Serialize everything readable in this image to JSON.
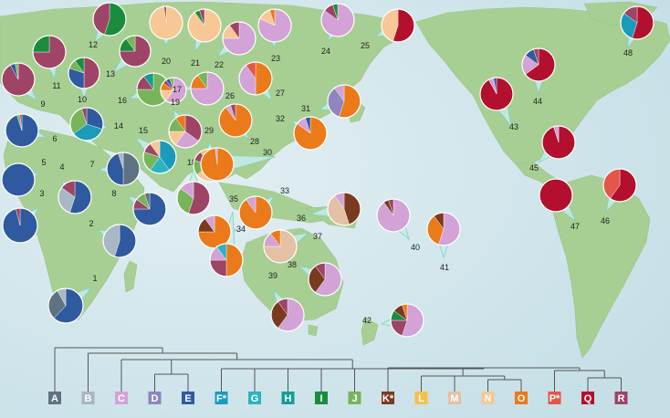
{
  "colors": {
    "A": "#5f7282",
    "B": "#a9b6c6",
    "C": "#d3a2d6",
    "D": "#8e86bd",
    "E": "#2f5aa0",
    "F": "#1b9aba",
    "G": "#2cb3bf",
    "H": "#159e8f",
    "I": "#1a8c3e",
    "J": "#78b45a",
    "K": "#7a3a20",
    "L": "#f6c04a",
    "M": "#e4c0a4",
    "N": "#f7c796",
    "O": "#ea7a1a",
    "P": "#e2574a",
    "Q": "#b2102e",
    "R": "#9e4466"
  },
  "haplogroups": [
    {
      "key": "A",
      "label": "A"
    },
    {
      "key": "B",
      "label": "B"
    },
    {
      "key": "C",
      "label": "C"
    },
    {
      "key": "D",
      "label": "D"
    },
    {
      "key": "E",
      "label": "E"
    },
    {
      "key": "F",
      "label": "F*"
    },
    {
      "key": "G",
      "label": "G"
    },
    {
      "key": "H",
      "label": "H"
    },
    {
      "key": "I",
      "label": "I"
    },
    {
      "key": "J",
      "label": "J"
    },
    {
      "key": "K",
      "label": "K*"
    },
    {
      "key": "L",
      "label": "L"
    },
    {
      "key": "M",
      "label": "M"
    },
    {
      "key": "N",
      "label": "N"
    },
    {
      "key": "O",
      "label": "O"
    },
    {
      "key": "P",
      "label": "P*"
    },
    {
      "key": "Q",
      "label": "Q"
    },
    {
      "key": "R",
      "label": "R"
    }
  ],
  "populations": [
    {
      "id": "1",
      "comp": {
        "E": 0.62,
        "A": 0.3,
        "B": 0.08
      }
    },
    {
      "id": "2",
      "comp": {
        "E": 0.55,
        "B": 0.45
      }
    },
    {
      "id": "3",
      "comp": {
        "E": 0.96,
        "R": 0.04
      }
    },
    {
      "id": "4",
      "comp": {
        "E": 0.55,
        "B": 0.3,
        "R": 0.15
      }
    },
    {
      "id": "5",
      "comp": {
        "E": 1.0
      }
    },
    {
      "id": "6",
      "comp": {
        "E": 0.95,
        "J": 0.03,
        "R": 0.02
      }
    },
    {
      "id": "7",
      "comp": {
        "A": 0.5,
        "E": 0.45,
        "B": 0.05
      }
    },
    {
      "id": "8",
      "comp": {
        "E": 0.75,
        "R": 0.1,
        "J": 0.1,
        "A": 0.05
      }
    },
    {
      "id": "9",
      "comp": {
        "R": 0.92,
        "E": 0.05,
        "J": 0.03
      }
    },
    {
      "id": "10",
      "comp": {
        "R": 0.5,
        "E": 0.3,
        "J": 0.1,
        "I": 0.1
      }
    },
    {
      "id": "11",
      "comp": {
        "R": 0.75,
        "I": 0.25
      }
    },
    {
      "id": "12",
      "comp": {
        "I": 0.55,
        "R": 0.45
      }
    },
    {
      "id": "13",
      "comp": {
        "R": 0.75,
        "I": 0.15,
        "J": 0.1
      }
    },
    {
      "id": "14",
      "comp": {
        "E": 0.3,
        "F": 0.35,
        "J": 0.3,
        "R": 0.05
      }
    },
    {
      "id": "15",
      "comp": {
        "F": 0.4,
        "G": 0.2,
        "J": 0.2,
        "R": 0.1,
        "N": 0.1
      }
    },
    {
      "id": "16",
      "comp": {
        "J": 0.75,
        "R": 0.15,
        "H": 0.1
      }
    },
    {
      "id": "17",
      "comp": {
        "C": 0.6,
        "N": 0.15,
        "O": 0.1,
        "R": 0.05,
        "E": 0.05,
        "J": 0.05
      }
    },
    {
      "id": "18",
      "comp": {
        "R": 0.55,
        "J": 0.3,
        "C": 0.15
      }
    },
    {
      "id": "19",
      "comp": {
        "R": 0.35,
        "C": 0.25,
        "N": 0.15,
        "J": 0.15,
        "O": 0.1
      }
    },
    {
      "id": "20",
      "comp": {
        "N": 0.98,
        "K": 0.02
      }
    },
    {
      "id": "21",
      "comp": {
        "N": 0.9,
        "I": 0.05,
        "R": 0.05
      }
    },
    {
      "id": "22",
      "comp": {
        "C": 0.75,
        "N": 0.15,
        "R": 0.1
      }
    },
    {
      "id": "23",
      "comp": {
        "C": 0.82,
        "N": 0.13,
        "O": 0.05
      }
    },
    {
      "id": "24",
      "comp": {
        "C": 0.85,
        "R": 0.1,
        "I": 0.05
      }
    },
    {
      "id": "25",
      "comp": {
        "Q": 0.55,
        "N": 0.45
      }
    },
    {
      "id": "26",
      "comp": {
        "C": 0.75,
        "O": 0.15,
        "J": 0.1
      }
    },
    {
      "id": "27",
      "comp": {
        "O": 0.5,
        "C": 0.4,
        "P": 0.1
      }
    },
    {
      "id": "28",
      "comp": {
        "O": 0.9,
        "C": 0.05,
        "R": 0.05
      }
    },
    {
      "id": "29",
      "comp": {
        "O": 0.35,
        "C": 0.15,
        "N": 0.15,
        "J": 0.15,
        "R": 0.1,
        "L": 0.1
      }
    },
    {
      "id": "30",
      "comp": {
        "O": 0.98,
        "C": 0.02
      }
    },
    {
      "id": "31",
      "comp": {
        "O": 0.55,
        "D": 0.35,
        "C": 0.1
      }
    },
    {
      "id": "32",
      "comp": {
        "O": 0.85,
        "C": 0.1,
        "E": 0.05
      }
    },
    {
      "id": "33",
      "comp": {
        "O": 0.9,
        "C": 0.1
      }
    },
    {
      "id": "34",
      "comp": {
        "O": 0.75,
        "K": 0.15,
        "C": 0.1
      }
    },
    {
      "id": "35",
      "comp": {
        "O": 0.5,
        "R": 0.25,
        "C": 0.15,
        "G": 0.1
      }
    },
    {
      "id": "36",
      "comp": {
        "K": 0.45,
        "M": 0.45,
        "C": 0.1
      }
    },
    {
      "id": "37",
      "comp": {
        "M": 0.75,
        "C": 0.15,
        "O": 0.1
      }
    },
    {
      "id": "38",
      "comp": {
        "C": 0.6,
        "K": 0.3,
        "R": 0.1
      }
    },
    {
      "id": "39",
      "comp": {
        "C": 0.6,
        "K": 0.3,
        "R": 0.1
      }
    },
    {
      "id": "40",
      "comp": {
        "C": 0.9,
        "K": 0.05,
        "R": 0.05
      }
    },
    {
      "id": "41",
      "comp": {
        "C": 0.55,
        "O": 0.35,
        "K": 0.1
      }
    },
    {
      "id": "42",
      "comp": {
        "C": 0.55,
        "R": 0.2,
        "I": 0.1,
        "K": 0.1,
        "O": 0.05
      }
    },
    {
      "id": "43",
      "comp": {
        "Q": 0.92,
        "C": 0.05,
        "E": 0.03
      }
    },
    {
      "id": "44",
      "comp": {
        "Q": 0.65,
        "C": 0.2,
        "E": 0.1,
        "R": 0.05
      }
    },
    {
      "id": "45",
      "comp": {
        "Q": 0.95,
        "C": 0.05
      }
    },
    {
      "id": "46",
      "comp": {
        "Q": 0.6,
        "P": 0.4
      }
    },
    {
      "id": "47",
      "comp": {
        "Q": 1.0
      }
    },
    {
      "id": "48",
      "comp": {
        "Q": 0.55,
        "F": 0.3,
        "R": 0.15
      }
    }
  ]
}
